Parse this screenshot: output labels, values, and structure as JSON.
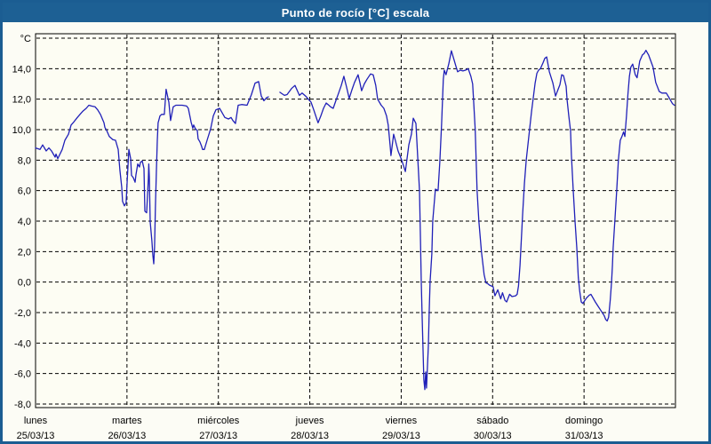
{
  "window": {
    "title": "Punto de rocío [°C] escala"
  },
  "colors": {
    "titlebar": "#1d6094",
    "border": "#1b5d92",
    "content_bg": "#fcfcf5",
    "plot_bg": "#fdfdf3",
    "line": "#2020b8",
    "grid": "#000000",
    "text": "#000000"
  },
  "chart_data": {
    "type": "line",
    "title": "Punto de rocío [°C] escala",
    "unit_label": "°C",
    "ylabel": "",
    "xlabel": "",
    "ylim": [
      -8,
      16
    ],
    "y_tick_step": 2,
    "grid": "dashed, horizontal every 2°C and vertical at each day boundary",
    "legend_position": "none",
    "y_ticks": [
      {
        "v": 16,
        "label": ""
      },
      {
        "v": 14,
        "label": "14,0"
      },
      {
        "v": 12,
        "label": "12,0"
      },
      {
        "v": 10,
        "label": "10,0"
      },
      {
        "v": 8,
        "label": "8,0"
      },
      {
        "v": 6,
        "label": "6,0"
      },
      {
        "v": 4,
        "label": "4,0"
      },
      {
        "v": 2,
        "label": "2,0"
      },
      {
        "v": 0,
        "label": "0,0"
      },
      {
        "v": -2,
        "label": "-2,0"
      },
      {
        "v": -4,
        "label": "-4,0"
      },
      {
        "v": -6,
        "label": "-6,0"
      },
      {
        "v": -8,
        "label": "-8,0"
      }
    ],
    "x_days": [
      {
        "name": "lunes",
        "date": "25/03/13"
      },
      {
        "name": "martes",
        "date": "26/03/13"
      },
      {
        "name": "miércoles",
        "date": "27/03/13"
      },
      {
        "name": "jueves",
        "date": "28/03/13"
      },
      {
        "name": "viernes",
        "date": "29/03/13"
      },
      {
        "name": "sábado",
        "date": "30/03/13"
      },
      {
        "name": "domingo",
        "date": "31/03/13"
      }
    ],
    "series": [
      {
        "name": "Punto de rocío",
        "color": "#2020b8",
        "x_unit": "days since lunes 25/03/13 00:00",
        "points": [
          [
            0.0,
            8.8
          ],
          [
            0.049,
            8.7
          ],
          [
            0.078,
            9.0
          ],
          [
            0.117,
            8.6
          ],
          [
            0.146,
            8.8
          ],
          [
            0.175,
            8.6
          ],
          [
            0.214,
            8.2
          ],
          [
            0.224,
            8.4
          ],
          [
            0.243,
            8.1
          ],
          [
            0.292,
            8.7
          ],
          [
            0.321,
            9.3
          ],
          [
            0.36,
            9.7
          ],
          [
            0.389,
            10.3
          ],
          [
            0.418,
            10.5
          ],
          [
            0.457,
            10.8
          ],
          [
            0.486,
            11.0
          ],
          [
            0.515,
            11.2
          ],
          [
            0.554,
            11.4
          ],
          [
            0.583,
            11.6
          ],
          [
            0.612,
            11.55
          ],
          [
            0.651,
            11.5
          ],
          [
            0.68,
            11.3
          ],
          [
            0.71,
            11.0
          ],
          [
            0.749,
            10.45
          ],
          [
            0.758,
            10.15
          ],
          [
            0.778,
            9.95
          ],
          [
            0.807,
            9.55
          ],
          [
            0.846,
            9.35
          ],
          [
            0.875,
            9.3
          ],
          [
            0.894,
            8.9
          ],
          [
            0.904,
            8.7
          ],
          [
            0.923,
            7.35
          ],
          [
            0.943,
            6.2
          ],
          [
            0.952,
            5.3
          ],
          [
            0.972,
            5.0
          ],
          [
            0.991,
            5.2
          ],
          [
            1.004,
            6.85
          ],
          [
            1.021,
            8.7
          ],
          [
            1.04,
            8.1
          ],
          [
            1.05,
            7.0
          ],
          [
            1.069,
            6.85
          ],
          [
            1.089,
            6.55
          ],
          [
            1.099,
            7.05
          ],
          [
            1.118,
            7.75
          ],
          [
            1.137,
            7.55
          ],
          [
            1.147,
            7.85
          ],
          [
            1.167,
            7.95
          ],
          [
            1.186,
            7.45
          ],
          [
            1.196,
            4.65
          ],
          [
            1.215,
            4.55
          ],
          [
            1.234,
            6.75
          ],
          [
            1.239,
            7.75
          ],
          [
            1.244,
            6.95
          ],
          [
            1.254,
            3.95
          ],
          [
            1.273,
            2.7
          ],
          [
            1.283,
            1.75
          ],
          [
            1.293,
            1.2
          ],
          [
            1.302,
            2.3
          ],
          [
            1.312,
            5.0
          ],
          [
            1.322,
            7.35
          ],
          [
            1.332,
            9.3
          ],
          [
            1.341,
            10.45
          ],
          [
            1.361,
            10.9
          ],
          [
            1.38,
            11.0
          ],
          [
            1.409,
            11.0
          ],
          [
            1.428,
            12.65
          ],
          [
            1.458,
            11.8
          ],
          [
            1.477,
            10.6
          ],
          [
            1.506,
            11.5
          ],
          [
            1.535,
            11.6
          ],
          [
            1.604,
            11.6
          ],
          [
            1.652,
            11.55
          ],
          [
            1.671,
            11.4
          ],
          [
            1.701,
            10.5
          ],
          [
            1.72,
            10.1
          ],
          [
            1.73,
            10.3
          ],
          [
            1.749,
            10.05
          ],
          [
            1.769,
            9.95
          ],
          [
            1.778,
            9.4
          ],
          [
            1.798,
            9.2
          ],
          [
            1.817,
            8.9
          ],
          [
            1.827,
            8.7
          ],
          [
            1.846,
            8.7
          ],
          [
            1.876,
            9.3
          ],
          [
            1.915,
            10.05
          ],
          [
            1.944,
            10.9
          ],
          [
            1.973,
            11.3
          ],
          [
            2.013,
            11.4
          ],
          [
            2.042,
            11.1
          ],
          [
            2.071,
            10.8
          ],
          [
            2.11,
            10.7
          ],
          [
            2.139,
            10.8
          ],
          [
            2.158,
            10.6
          ],
          [
            2.187,
            10.4
          ],
          [
            2.217,
            11.6
          ],
          [
            2.255,
            11.65
          ],
          [
            2.314,
            11.6
          ],
          [
            2.362,
            12.3
          ],
          [
            2.401,
            13.05
          ],
          [
            2.44,
            13.15
          ],
          [
            2.469,
            12.2
          ],
          [
            2.498,
            11.9
          ],
          [
            2.528,
            12.1
          ],
          [
            2.547,
            12.15
          ],
          null,
          [
            2.673,
            12.45
          ],
          [
            2.722,
            12.25
          ],
          [
            2.751,
            12.3
          ],
          [
            2.8,
            12.7
          ],
          [
            2.838,
            12.9
          ],
          [
            2.868,
            12.5
          ],
          [
            2.887,
            12.25
          ],
          [
            2.916,
            12.4
          ],
          [
            2.955,
            12.2
          ],
          [
            2.984,
            12.0
          ],
          [
            3.014,
            11.8
          ],
          [
            3.043,
            11.3
          ],
          [
            3.082,
            10.6
          ],
          [
            3.091,
            10.45
          ],
          [
            3.121,
            10.9
          ],
          [
            3.15,
            11.4
          ],
          [
            3.179,
            11.75
          ],
          [
            3.208,
            11.6
          ],
          [
            3.227,
            11.5
          ],
          [
            3.256,
            11.4
          ],
          [
            3.285,
            11.9
          ],
          [
            3.315,
            12.4
          ],
          [
            3.344,
            12.9
          ],
          [
            3.373,
            13.5
          ],
          [
            3.402,
            12.8
          ],
          [
            3.431,
            12.05
          ],
          [
            3.46,
            12.6
          ],
          [
            3.489,
            13.1
          ],
          [
            3.528,
            13.6
          ],
          [
            3.548,
            13.1
          ],
          [
            3.567,
            12.55
          ],
          [
            3.596,
            13.0
          ],
          [
            3.625,
            13.3
          ],
          [
            3.664,
            13.65
          ],
          [
            3.693,
            13.6
          ],
          [
            3.722,
            12.9
          ],
          [
            3.742,
            12.0
          ],
          [
            3.781,
            11.6
          ],
          [
            3.81,
            11.4
          ],
          [
            3.839,
            10.9
          ],
          [
            3.858,
            10.3
          ],
          [
            3.878,
            9.0
          ],
          [
            3.888,
            8.3
          ],
          [
            3.917,
            9.7
          ],
          [
            3.936,
            9.3
          ],
          [
            3.966,
            8.6
          ],
          [
            4.006,
            8.0
          ],
          [
            4.045,
            7.25
          ],
          [
            4.083,
            9.0
          ],
          [
            4.112,
            9.7
          ],
          [
            4.132,
            10.75
          ],
          [
            4.161,
            10.4
          ],
          [
            4.2,
            6.0
          ],
          [
            4.21,
            3.1
          ],
          [
            4.219,
            0.0
          ],
          [
            4.229,
            -2.3
          ],
          [
            4.248,
            -6.4
          ],
          [
            4.258,
            -7.05
          ],
          [
            4.268,
            -5.9
          ],
          [
            4.277,
            -6.95
          ],
          [
            4.297,
            -4.15
          ],
          [
            4.306,
            -2.0
          ],
          [
            4.316,
            0.0
          ],
          [
            4.335,
            1.85
          ],
          [
            4.345,
            4.0
          ],
          [
            4.374,
            6.1
          ],
          [
            4.403,
            6.0
          ],
          [
            4.423,
            7.9
          ],
          [
            4.442,
            10.4
          ],
          [
            4.461,
            13.3
          ],
          [
            4.471,
            13.9
          ],
          [
            4.49,
            13.6
          ],
          [
            4.52,
            14.3
          ],
          [
            4.549,
            15.17
          ],
          [
            4.597,
            14.2
          ],
          [
            4.617,
            13.8
          ],
          [
            4.646,
            13.9
          ],
          [
            4.675,
            13.85
          ],
          [
            4.704,
            13.9
          ],
          [
            4.733,
            14.0
          ],
          [
            4.762,
            13.5
          ],
          [
            4.781,
            13.0
          ],
          [
            4.791,
            12.0
          ],
          [
            4.81,
            10.0
          ],
          [
            4.83,
            6.0
          ],
          [
            4.849,
            4.0
          ],
          [
            4.878,
            2.0
          ],
          [
            4.907,
            0.5
          ],
          [
            4.927,
            -0.05
          ],
          [
            4.946,
            -0.1
          ],
          [
            4.966,
            -0.2
          ],
          [
            4.986,
            -0.25
          ],
          [
            5.005,
            -0.3
          ],
          [
            5.025,
            -0.9
          ],
          [
            5.057,
            -0.5
          ],
          [
            5.089,
            -1.1
          ],
          [
            5.108,
            -0.7
          ],
          [
            5.135,
            -1.2
          ],
          [
            5.154,
            -1.3
          ],
          [
            5.186,
            -0.8
          ],
          [
            5.212,
            -0.95
          ],
          [
            5.251,
            -0.9
          ],
          [
            5.268,
            -0.8
          ],
          [
            5.283,
            -0.25
          ],
          [
            5.3,
            1.1
          ],
          [
            5.329,
            4.5
          ],
          [
            5.348,
            6.5
          ],
          [
            5.368,
            8.0
          ],
          [
            5.397,
            9.6
          ],
          [
            5.426,
            11.2
          ],
          [
            5.465,
            13.05
          ],
          [
            5.484,
            13.7
          ],
          [
            5.503,
            13.9
          ],
          [
            5.523,
            14.0
          ],
          [
            5.552,
            14.4
          ],
          [
            5.571,
            14.68
          ],
          [
            5.591,
            14.77
          ],
          [
            5.62,
            13.8
          ],
          [
            5.659,
            13.05
          ],
          [
            5.688,
            12.2
          ],
          [
            5.717,
            12.65
          ],
          [
            5.736,
            12.95
          ],
          [
            5.756,
            13.6
          ],
          [
            5.775,
            13.55
          ],
          [
            5.804,
            12.85
          ],
          [
            5.814,
            12.0
          ],
          [
            5.833,
            10.9
          ],
          [
            5.853,
            9.9
          ],
          [
            5.862,
            8.35
          ],
          [
            5.882,
            6.0
          ],
          [
            5.901,
            4.0
          ],
          [
            5.921,
            2.25
          ],
          [
            5.937,
            0.3
          ],
          [
            5.953,
            -0.6
          ],
          [
            5.969,
            -1.3
          ],
          [
            5.986,
            -1.4
          ],
          [
            6.026,
            -1.05
          ],
          [
            6.058,
            -0.85
          ],
          [
            6.075,
            -0.8
          ],
          [
            6.123,
            -1.3
          ],
          [
            6.155,
            -1.6
          ],
          [
            6.188,
            -1.9
          ],
          [
            6.22,
            -2.2
          ],
          [
            6.237,
            -2.45
          ],
          [
            6.253,
            -2.55
          ],
          [
            6.269,
            -2.3
          ],
          [
            6.286,
            -1.2
          ],
          [
            6.301,
            0.0
          ],
          [
            6.311,
            1.1
          ],
          [
            6.318,
            2.25
          ],
          [
            6.337,
            4.0
          ],
          [
            6.357,
            6.0
          ],
          [
            6.376,
            8.0
          ],
          [
            6.396,
            9.3
          ],
          [
            6.415,
            9.55
          ],
          [
            6.432,
            9.85
          ],
          [
            6.447,
            9.55
          ],
          [
            6.464,
            10.9
          ],
          [
            6.48,
            12.3
          ],
          [
            6.496,
            13.5
          ],
          [
            6.512,
            14.1
          ],
          [
            6.532,
            14.3
          ],
          [
            6.561,
            13.6
          ],
          [
            6.58,
            13.4
          ],
          [
            6.609,
            14.5
          ],
          [
            6.638,
            14.9
          ],
          [
            6.658,
            15.0
          ],
          [
            6.677,
            15.2
          ],
          [
            6.706,
            14.9
          ],
          [
            6.755,
            14.1
          ],
          [
            6.784,
            13.1
          ],
          [
            6.823,
            12.5
          ],
          [
            6.852,
            12.4
          ],
          [
            6.9,
            12.4
          ],
          [
            6.93,
            12.1
          ],
          [
            6.968,
            11.7
          ],
          [
            6.988,
            11.6
          ]
        ]
      }
    ]
  }
}
